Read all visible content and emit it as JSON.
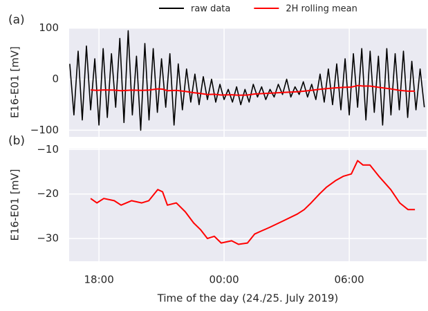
{
  "chart_data": [
    {
      "type": "line",
      "panel_label": "(a)",
      "ylabel": "E16-E01 [mV]",
      "xlim": [
        16.57,
        33.71
      ],
      "ylim": [
        -113,
        101
      ],
      "xticks": [
        {
          "value": 18,
          "label": "18:00"
        },
        {
          "value": 24,
          "label": "00:00"
        },
        {
          "value": 30,
          "label": "06:00"
        }
      ],
      "yticks": [
        {
          "value": -100,
          "label": "−100"
        },
        0,
        100
      ],
      "grid": true,
      "legend": "top-center",
      "series": [
        {
          "name": "raw data",
          "color": "#000000",
          "x": [
            16.6,
            16.8,
            17.0,
            17.2,
            17.4,
            17.6,
            17.8,
            18.0,
            18.2,
            18.4,
            18.6,
            18.8,
            19.0,
            19.2,
            19.4,
            19.6,
            19.8,
            20.0,
            20.2,
            20.4,
            20.6,
            20.8,
            21.0,
            21.2,
            21.4,
            21.6,
            21.8,
            22.0,
            22.2,
            22.4,
            22.6,
            22.8,
            23.0,
            23.2,
            23.4,
            23.6,
            23.8,
            24.0,
            24.2,
            24.4,
            24.6,
            24.8,
            25.0,
            25.2,
            25.4,
            25.6,
            25.8,
            26.0,
            26.2,
            26.4,
            26.6,
            26.8,
            27.0,
            27.2,
            27.4,
            27.6,
            27.8,
            28.0,
            28.2,
            28.4,
            28.6,
            28.8,
            29.0,
            29.2,
            29.4,
            29.6,
            29.8,
            30.0,
            30.2,
            30.4,
            30.6,
            30.8,
            31.0,
            31.2,
            31.4,
            31.6,
            31.8,
            32.0,
            32.2,
            32.4,
            32.6,
            32.8,
            33.0,
            33.2,
            33.4,
            33.6
          ],
          "values": [
            30,
            -70,
            55,
            -80,
            65,
            -60,
            40,
            -90,
            60,
            -75,
            50,
            -55,
            80,
            -85,
            95,
            -70,
            45,
            -100,
            70,
            -80,
            60,
            -65,
            40,
            -55,
            50,
            -90,
            30,
            -60,
            20,
            -45,
            10,
            -50,
            5,
            -40,
            0,
            -45,
            -10,
            -40,
            -20,
            -45,
            -15,
            -50,
            -20,
            -45,
            -10,
            -35,
            -15,
            -40,
            -20,
            -35,
            -10,
            -30,
            0,
            -35,
            -15,
            -30,
            -5,
            -35,
            -10,
            -40,
            10,
            -45,
            20,
            -50,
            30,
            -60,
            40,
            -70,
            50,
            -55,
            60,
            -80,
            55,
            -65,
            45,
            -90,
            60,
            -70,
            50,
            -60,
            55,
            -75,
            35,
            -60,
            20,
            -55
          ]
        },
        {
          "name": "2H rolling mean",
          "color": "#ff0000",
          "x": [
            17.6,
            17.9,
            18.23,
            18.73,
            19.06,
            19.56,
            20.05,
            20.39,
            20.82,
            21.05,
            21.28,
            21.71,
            22.14,
            22.54,
            22.87,
            23.2,
            23.53,
            23.86,
            24.36,
            24.69,
            25.12,
            25.46,
            25.69,
            26.18,
            26.85,
            27.51,
            27.84,
            28.17,
            28.57,
            28.9,
            29.34,
            29.73,
            30.1,
            30.4,
            30.66,
            30.99,
            31.42,
            31.99,
            32.42,
            32.82,
            33.15
          ],
          "values": [
            -21,
            -22,
            -21,
            -21.5,
            -22.5,
            -21.5,
            -22,
            -21.5,
            -19,
            -19.5,
            -22.5,
            -22,
            -24,
            -26.5,
            -28,
            -30,
            -29.5,
            -31,
            -30.5,
            -31.3,
            -31,
            -29,
            -28.5,
            -27.5,
            -26,
            -24.5,
            -23.5,
            -22,
            -20,
            -18.5,
            -17,
            -16,
            -15.5,
            -12.5,
            -13.5,
            -13.5,
            -16,
            -19,
            -22,
            -23.5,
            -23.5
          ]
        }
      ]
    },
    {
      "type": "line",
      "panel_label": "(b)",
      "ylabel": "E16-E01 [mV]",
      "xlabel": "Time of the day (24./25. July 2019)",
      "xlim": [
        16.57,
        33.71
      ],
      "ylim": [
        -35.1,
        -9.8
      ],
      "xticks": [
        {
          "value": 18,
          "label": "18:00"
        },
        {
          "value": 24,
          "label": "00:00"
        },
        {
          "value": 30,
          "label": "06:00"
        }
      ],
      "yticks": [
        {
          "value": -30,
          "label": "−30"
        },
        {
          "value": -20,
          "label": "−20"
        },
        {
          "value": -10,
          "label": "−10"
        }
      ],
      "grid": true,
      "series": [
        {
          "name": "2H rolling mean",
          "color": "#ff0000",
          "x": [
            17.6,
            17.9,
            18.23,
            18.73,
            19.06,
            19.56,
            20.05,
            20.39,
            20.82,
            21.05,
            21.28,
            21.71,
            22.14,
            22.54,
            22.87,
            23.2,
            23.53,
            23.86,
            24.36,
            24.69,
            25.12,
            25.46,
            25.69,
            26.18,
            26.85,
            27.51,
            27.84,
            28.17,
            28.57,
            28.9,
            29.34,
            29.73,
            30.1,
            30.4,
            30.66,
            30.99,
            31.42,
            31.99,
            32.42,
            32.82,
            33.15
          ],
          "values": [
            -21,
            -22,
            -21,
            -21.5,
            -22.5,
            -21.5,
            -22,
            -21.5,
            -19,
            -19.5,
            -22.5,
            -22,
            -24,
            -26.5,
            -28,
            -30,
            -29.5,
            -31,
            -30.5,
            -31.3,
            -31,
            -29,
            -28.5,
            -27.5,
            -26,
            -24.5,
            -23.5,
            -22,
            -20,
            -18.5,
            -17,
            -16,
            -15.5,
            -12.5,
            -13.5,
            -13.5,
            -16,
            -19,
            -22,
            -23.5,
            -23.5
          ]
        }
      ]
    }
  ]
}
